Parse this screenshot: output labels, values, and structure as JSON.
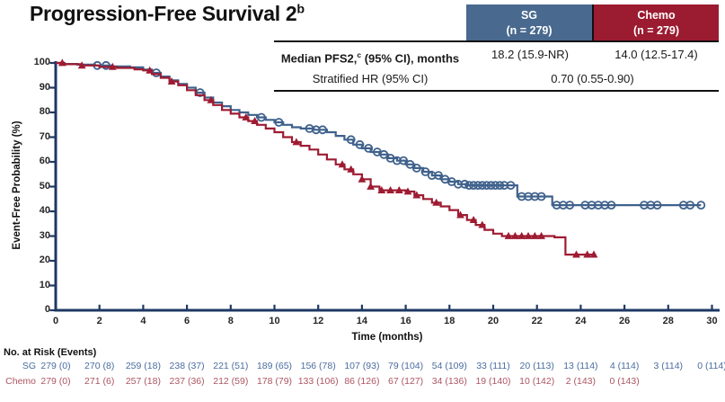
{
  "title": {
    "text": "Progression-Free Survival 2",
    "sup": "b"
  },
  "colors": {
    "sg_curve": "#3f618c",
    "chemo_curve": "#9e1b32",
    "sg_header_bg": "#49698f",
    "chemo_header_bg": "#9b1b30",
    "axis": "#1f3864",
    "risk_sg_text": "#4a6d9e",
    "risk_chemo_text": "#ad5663"
  },
  "stats_table": {
    "columns": [
      {
        "name": "SG",
        "n": "(n = 279)"
      },
      {
        "name": "Chemo",
        "n": "(n = 279)"
      }
    ],
    "rows": [
      {
        "label_pre": "Median PFS2,",
        "label_sup": "c",
        "label_post": " (95% CI), months",
        "sg_value": "18.2 (15.9-NR)",
        "chemo_value": "14.0 (12.5-17.4)"
      },
      {
        "label_pre": "Stratified HR (95% CI)",
        "label_sup": "",
        "label_post": "",
        "combined_value": "0.70 (0.55-0.90)"
      }
    ]
  },
  "chart_data": {
    "type": "line",
    "subtype": "kaplan-meier-step",
    "title": "Progression-Free Survival 2",
    "xlabel": "Time (months)",
    "ylabel": "Event-Free Probability (%)",
    "xlim": [
      0,
      30
    ],
    "ylim": [
      0,
      100
    ],
    "xticks": [
      0,
      2,
      4,
      6,
      8,
      10,
      12,
      14,
      16,
      18,
      20,
      22,
      24,
      26,
      28,
      30
    ],
    "yticks": [
      0,
      10,
      20,
      30,
      40,
      50,
      60,
      70,
      80,
      90,
      100
    ],
    "grid": false,
    "legend_position": "none",
    "series": [
      {
        "name": "SG",
        "marker": "open-circle",
        "steps": [
          [
            0,
            100
          ],
          [
            0.4,
            99.6
          ],
          [
            1.0,
            99.3
          ],
          [
            1.8,
            99
          ],
          [
            2.6,
            98.6
          ],
          [
            3.4,
            98.2
          ],
          [
            4.0,
            97.3
          ],
          [
            4.4,
            96
          ],
          [
            4.8,
            94.5
          ],
          [
            5.2,
            93
          ],
          [
            5.6,
            91.5
          ],
          [
            6.0,
            90
          ],
          [
            6.4,
            88
          ],
          [
            6.8,
            86
          ],
          [
            7.2,
            84
          ],
          [
            7.6,
            82.5
          ],
          [
            8.0,
            81
          ],
          [
            8.4,
            80
          ],
          [
            8.8,
            79
          ],
          [
            9.2,
            78
          ],
          [
            9.6,
            77
          ],
          [
            10.0,
            76
          ],
          [
            10.4,
            75
          ],
          [
            10.8,
            74
          ],
          [
            11.2,
            73.5
          ],
          [
            11.8,
            73
          ],
          [
            12.4,
            72
          ],
          [
            12.8,
            70.5
          ],
          [
            13.2,
            69
          ],
          [
            13.6,
            67
          ],
          [
            14.0,
            65.5
          ],
          [
            14.4,
            64
          ],
          [
            14.8,
            63
          ],
          [
            15.2,
            61.5
          ],
          [
            15.6,
            60.5
          ],
          [
            16.0,
            59
          ],
          [
            16.4,
            57.5
          ],
          [
            16.8,
            56
          ],
          [
            17.2,
            54.5
          ],
          [
            17.6,
            53
          ],
          [
            18.0,
            52
          ],
          [
            18.4,
            51
          ],
          [
            18.8,
            50.5
          ],
          [
            21.1,
            46
          ],
          [
            22.7,
            42.5
          ],
          [
            29.5,
            42.5
          ]
        ],
        "censor_times": [
          1.9,
          2.3,
          4.6,
          6.6,
          9.4,
          10.2,
          11.6,
          11.9,
          12.2,
          13.5,
          13.9,
          14.3,
          14.7,
          15.0,
          15.3,
          15.6,
          15.9,
          16.2,
          16.5,
          16.9,
          17.2,
          17.5,
          17.8,
          18.1,
          18.4,
          18.7,
          18.9,
          19.1,
          19.3,
          19.5,
          19.7,
          19.9,
          20.1,
          20.3,
          20.5,
          20.8,
          21.3,
          21.6,
          21.9,
          22.2,
          22.9,
          23.2,
          23.5,
          24.2,
          24.5,
          24.8,
          25.1,
          25.4,
          26.9,
          27.2,
          27.5,
          28.7,
          29.0,
          29.5
        ]
      },
      {
        "name": "Chemo",
        "marker": "filled-triangle",
        "steps": [
          [
            0,
            100
          ],
          [
            0.4,
            99.5
          ],
          [
            1.2,
            99
          ],
          [
            2.0,
            98.4
          ],
          [
            2.8,
            98
          ],
          [
            3.6,
            97.4
          ],
          [
            4.0,
            97
          ],
          [
            4.4,
            95.5
          ],
          [
            4.8,
            94
          ],
          [
            5.2,
            92.5
          ],
          [
            5.6,
            91
          ],
          [
            6.0,
            89
          ],
          [
            6.4,
            87
          ],
          [
            6.8,
            85
          ],
          [
            7.2,
            83
          ],
          [
            7.6,
            81
          ],
          [
            8.0,
            79.5
          ],
          [
            8.4,
            78
          ],
          [
            8.8,
            76.5
          ],
          [
            9.2,
            75
          ],
          [
            9.6,
            73.5
          ],
          [
            10.0,
            72
          ],
          [
            10.4,
            70
          ],
          [
            10.8,
            68
          ],
          [
            11.2,
            66.5
          ],
          [
            11.6,
            65
          ],
          [
            12.0,
            63
          ],
          [
            12.4,
            61
          ],
          [
            12.8,
            59
          ],
          [
            13.2,
            57
          ],
          [
            13.6,
            55
          ],
          [
            14.0,
            53
          ],
          [
            14.4,
            50
          ],
          [
            14.8,
            48.5
          ],
          [
            16.0,
            48
          ],
          [
            16.4,
            46.5
          ],
          [
            16.8,
            45
          ],
          [
            17.2,
            43.5
          ],
          [
            17.6,
            42
          ],
          [
            18.0,
            40.5
          ],
          [
            18.4,
            38.5
          ],
          [
            18.8,
            36.5
          ],
          [
            19.2,
            34.5
          ],
          [
            19.6,
            32.5
          ],
          [
            20.0,
            31
          ],
          [
            20.4,
            30
          ],
          [
            22.8,
            29.5
          ],
          [
            23.3,
            22.5
          ],
          [
            24.7,
            22.5
          ]
        ],
        "censor_times": [
          0.3,
          1.2,
          2.6,
          4.3,
          5.3,
          7.1,
          8.7,
          9.1,
          11.0,
          13.1,
          13.5,
          14.0,
          14.4,
          14.9,
          15.3,
          15.7,
          16.1,
          16.5,
          17.4,
          18.5,
          19.1,
          19.5,
          20.7,
          21.0,
          21.3,
          21.6,
          21.9,
          22.2,
          23.8,
          24.3,
          24.6
        ]
      }
    ]
  },
  "risk_table": {
    "title": "No. at Risk (Events)",
    "rows": [
      {
        "label": "SG",
        "values": [
          "279 (0)",
          "270 (8)",
          "259 (18)",
          "238 (37)",
          "221 (51)",
          "189 (65)",
          "156 (78)",
          "107 (93)",
          "79 (104)",
          "54 (109)",
          "33 (111)",
          "20 (113)",
          "13 (114)",
          "4 (114)",
          "3 (114)",
          "0 (114)"
        ]
      },
      {
        "label": "Chemo",
        "values": [
          "279 (0)",
          "271 (6)",
          "257 (18)",
          "237 (36)",
          "212 (59)",
          "178 (79)",
          "133 (106)",
          "86 (126)",
          "67 (127)",
          "34 (136)",
          "19 (140)",
          "10 (142)",
          "2 (143)",
          "0 (143)"
        ]
      }
    ]
  }
}
